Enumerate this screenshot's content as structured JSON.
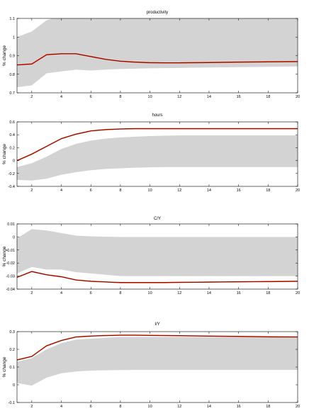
{
  "chart_data": [
    {
      "type": "line",
      "title": "productivity",
      "ylabel": "% change",
      "xlim": [
        1,
        20
      ],
      "ylim": [
        0.7,
        1.1
      ],
      "xticks": [
        2,
        4,
        6,
        8,
        10,
        12,
        14,
        16,
        18,
        20
      ],
      "yticks": [
        0.7,
        0.8,
        0.9,
        1,
        1.1
      ],
      "ytick_labels": [
        "0.7",
        "0.8",
        "0.9",
        "1",
        "1.1"
      ],
      "x": [
        1,
        2,
        3,
        4,
        5,
        6,
        7,
        8,
        9,
        10,
        11,
        12,
        13,
        14,
        15,
        16,
        17,
        18,
        20
      ],
      "band_color": "#d3d3d3",
      "series": [
        {
          "role": "band",
          "upper": [
            1.0,
            1.03,
            1.09,
            1.115,
            1.125,
            1.125,
            1.125,
            1.122,
            1.122,
            1.122,
            1.123,
            1.124,
            1.125,
            1.126,
            1.127,
            1.128,
            1.129,
            1.13,
            1.132
          ],
          "lower": [
            0.73,
            0.74,
            0.805,
            0.815,
            0.825,
            0.82,
            0.825,
            0.828,
            0.83,
            0.832,
            0.833,
            0.834,
            0.835,
            0.836,
            0.837,
            0.838,
            0.839,
            0.84,
            0.842
          ]
        },
        {
          "role": "line",
          "color": "#ff2200",
          "values": [
            0.85,
            0.855,
            0.905,
            0.91,
            0.91,
            0.895,
            0.88,
            0.87,
            0.865,
            0.862,
            0.861,
            0.861,
            0.862,
            0.863,
            0.864,
            0.865,
            0.866,
            0.867,
            0.868
          ]
        },
        {
          "role": "line",
          "color": "#000000",
          "values": [
            0.85,
            0.855,
            0.905,
            0.91,
            0.91,
            0.895,
            0.88,
            0.87,
            0.865,
            0.862,
            0.861,
            0.861,
            0.862,
            0.863,
            0.864,
            0.865,
            0.866,
            0.867,
            0.868
          ]
        }
      ]
    },
    {
      "type": "line",
      "title": "hours",
      "ylabel": "% change",
      "xlim": [
        1,
        20
      ],
      "ylim": [
        -0.4,
        0.6
      ],
      "xticks": [
        2,
        4,
        6,
        8,
        10,
        12,
        14,
        16,
        18,
        20
      ],
      "yticks": [
        -0.4,
        -0.2,
        0,
        0.2,
        0.4,
        0.6
      ],
      "ytick_labels": [
        "-0.4",
        "-0.2",
        "0",
        "0.2",
        "0.4",
        "0.6"
      ],
      "x": [
        1,
        2,
        3,
        4,
        5,
        6,
        7,
        8,
        9,
        10,
        11,
        12,
        13,
        14,
        15,
        16,
        17,
        18,
        20
      ],
      "band_color": "#d3d3d3",
      "series": [
        {
          "role": "band",
          "upper": [
            -0.1,
            -0.04,
            0.06,
            0.18,
            0.26,
            0.31,
            0.34,
            0.36,
            0.37,
            0.38,
            0.385,
            0.39,
            0.39,
            0.39,
            0.39,
            0.39,
            0.39,
            0.39,
            0.39
          ],
          "lower": [
            -0.3,
            -0.31,
            -0.28,
            -0.22,
            -0.18,
            -0.15,
            -0.13,
            -0.12,
            -0.11,
            -0.105,
            -0.1,
            -0.1,
            -0.1,
            -0.1,
            -0.1,
            -0.1,
            -0.1,
            -0.1,
            -0.1
          ]
        },
        {
          "role": "line",
          "color": "#ff2200",
          "values": [
            0.0,
            0.1,
            0.22,
            0.34,
            0.41,
            0.46,
            0.48,
            0.49,
            0.495,
            0.495,
            0.495,
            0.495,
            0.495,
            0.495,
            0.495,
            0.495,
            0.495,
            0.495,
            0.495
          ]
        },
        {
          "role": "line",
          "color": "#000000",
          "values": [
            0.0,
            0.1,
            0.22,
            0.34,
            0.41,
            0.46,
            0.48,
            0.49,
            0.495,
            0.495,
            0.495,
            0.495,
            0.495,
            0.495,
            0.495,
            0.495,
            0.495,
            0.495,
            0.495
          ]
        }
      ]
    },
    {
      "type": "line",
      "title": "C/Y",
      "ylabel": "% change",
      "xlim": [
        1,
        20
      ],
      "ylim": [
        -0.04,
        0.01
      ],
      "xticks": [
        2,
        4,
        6,
        8,
        10,
        12,
        14,
        16,
        18,
        20
      ],
      "yticks": [
        -0.04,
        -0.03,
        -0.02,
        -0.01,
        0,
        0.01
      ],
      "ytick_labels": [
        "-0.04",
        "-0.03",
        "-0.02",
        "-0.01",
        "0",
        "0.01"
      ],
      "x": [
        1,
        2,
        3,
        4,
        5,
        6,
        7,
        8,
        9,
        10,
        11,
        12,
        13,
        14,
        15,
        16,
        17,
        18,
        20
      ],
      "band_color": "#d3d3d3",
      "series": [
        {
          "role": "band",
          "upper": [
            -0.001,
            0.006,
            0.005,
            0.003,
            0.001,
            0.0005,
            0.0002,
            0.0,
            0.0,
            0.0,
            0.0,
            0.0,
            0.0,
            0.0,
            0.0,
            0.0,
            0.0,
            0.0,
            0.0
          ],
          "lower": [
            -0.028,
            -0.023,
            -0.025,
            -0.025,
            -0.027,
            -0.028,
            -0.029,
            -0.03,
            -0.03,
            -0.03,
            -0.03,
            -0.03,
            -0.03,
            -0.03,
            -0.03,
            -0.03,
            -0.03,
            -0.03,
            -0.03
          ]
        },
        {
          "role": "line",
          "color": "#ff2200",
          "values": [
            -0.031,
            -0.0265,
            -0.029,
            -0.0305,
            -0.033,
            -0.034,
            -0.0345,
            -0.035,
            -0.035,
            -0.035,
            -0.035,
            -0.0348,
            -0.0347,
            -0.0346,
            -0.0345,
            -0.0344,
            -0.0343,
            -0.0342,
            -0.034
          ]
        },
        {
          "role": "line",
          "color": "#000000",
          "values": [
            -0.031,
            -0.0265,
            -0.029,
            -0.0305,
            -0.033,
            -0.034,
            -0.0345,
            -0.035,
            -0.035,
            -0.035,
            -0.035,
            -0.0348,
            -0.0347,
            -0.0346,
            -0.0345,
            -0.0344,
            -0.0343,
            -0.0342,
            -0.034
          ]
        }
      ]
    },
    {
      "type": "line",
      "title": "I/Y",
      "ylabel": "% change",
      "xlim": [
        1,
        20
      ],
      "ylim": [
        -0.1,
        0.3
      ],
      "xticks": [
        2,
        4,
        6,
        8,
        10,
        12,
        14,
        16,
        18,
        20
      ],
      "yticks": [
        -0.1,
        0,
        0.1,
        0.2,
        0.3
      ],
      "ytick_labels": [
        "-0.1",
        "0",
        "0.1",
        "0.2",
        "0.3"
      ],
      "x": [
        1,
        2,
        3,
        4,
        5,
        6,
        7,
        8,
        9,
        10,
        11,
        12,
        13,
        14,
        15,
        16,
        17,
        18,
        20
      ],
      "band_color": "#d3d3d3",
      "series": [
        {
          "role": "band",
          "upper": [
            0.13,
            0.15,
            0.2,
            0.235,
            0.255,
            0.26,
            0.265,
            0.27,
            0.27,
            0.27,
            0.27,
            0.27,
            0.27,
            0.27,
            0.27,
            0.27,
            0.27,
            0.27,
            0.27
          ],
          "lower": [
            0.01,
            -0.005,
            0.04,
            0.065,
            0.075,
            0.08,
            0.082,
            0.083,
            0.084,
            0.084,
            0.084,
            0.084,
            0.084,
            0.084,
            0.084,
            0.084,
            0.084,
            0.084,
            0.084
          ]
        },
        {
          "role": "line",
          "color": "#ff2200",
          "values": [
            0.14,
            0.16,
            0.22,
            0.25,
            0.27,
            0.275,
            0.278,
            0.28,
            0.28,
            0.279,
            0.278,
            0.277,
            0.276,
            0.275,
            0.274,
            0.273,
            0.272,
            0.271,
            0.27
          ]
        },
        {
          "role": "line",
          "color": "#000000",
          "values": [
            0.14,
            0.16,
            0.22,
            0.25,
            0.27,
            0.275,
            0.278,
            0.28,
            0.28,
            0.279,
            0.278,
            0.277,
            0.276,
            0.275,
            0.274,
            0.273,
            0.272,
            0.271,
            0.27
          ]
        }
      ]
    }
  ]
}
